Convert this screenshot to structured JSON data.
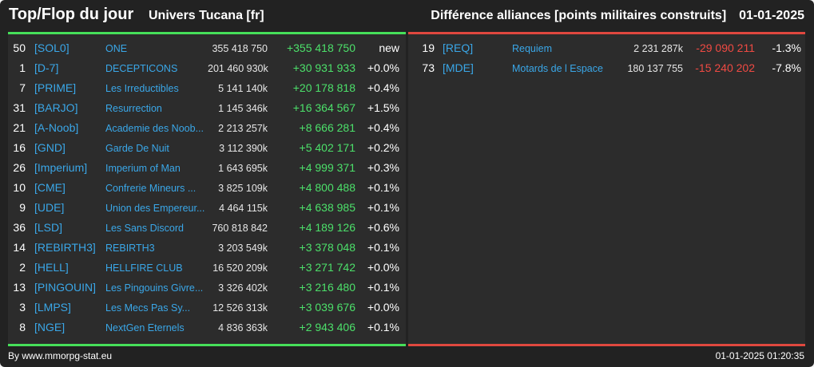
{
  "header": {
    "title": "Top/Flop du jour",
    "universe": "Univers Tucana [fr]",
    "category": "Différence alliances [points militaires construits]",
    "date": "01-01-2025"
  },
  "colors": {
    "top": "#46e05a",
    "flop": "#e0483f",
    "tag": "#3aa7e8"
  },
  "top": [
    {
      "rank": "50",
      "tag": "[SOL0]",
      "name": "ONE",
      "points": "355 418 750",
      "diff": "+355 418 750",
      "pct": "new"
    },
    {
      "rank": "1",
      "tag": "[D-7]",
      "name": "DECEPTICONS",
      "points": "201 460 930k",
      "diff": "+30 931 933",
      "pct": "+0.0%"
    },
    {
      "rank": "7",
      "tag": "[PRIME]",
      "name": "Les Irreductibles",
      "points": "5 141 140k",
      "diff": "+20 178 818",
      "pct": "+0.4%"
    },
    {
      "rank": "31",
      "tag": "[BARJO]",
      "name": "Resurrection",
      "points": "1 145 346k",
      "diff": "+16 364 567",
      "pct": "+1.5%"
    },
    {
      "rank": "21",
      "tag": "[A-Noob]",
      "name": "Academie des Noob...",
      "points": "2 213 257k",
      "diff": "+8 666 281",
      "pct": "+0.4%"
    },
    {
      "rank": "16",
      "tag": "[GND]",
      "name": "Garde De Nuit",
      "points": "3 112 390k",
      "diff": "+5 402 171",
      "pct": "+0.2%"
    },
    {
      "rank": "26",
      "tag": "[Imperium]",
      "name": "Imperium of Man",
      "points": "1 643 695k",
      "diff": "+4 999 371",
      "pct": "+0.3%"
    },
    {
      "rank": "10",
      "tag": "[CME]",
      "name": "Confrerie Mineurs ...",
      "points": "3 825 109k",
      "diff": "+4 800 488",
      "pct": "+0.1%"
    },
    {
      "rank": "9",
      "tag": "[UDE]",
      "name": "Union des Empereur...",
      "points": "4 464 115k",
      "diff": "+4 638 985",
      "pct": "+0.1%"
    },
    {
      "rank": "36",
      "tag": "[LSD]",
      "name": "Les Sans Discord",
      "points": "760 818 842",
      "diff": "+4 189 126",
      "pct": "+0.6%"
    },
    {
      "rank": "14",
      "tag": "[REBIRTH3]",
      "name": "REBIRTH3",
      "points": "3 203 549k",
      "diff": "+3 378 048",
      "pct": "+0.1%"
    },
    {
      "rank": "2",
      "tag": "[HELL]",
      "name": "HELLFIRE CLUB",
      "points": "16 520 209k",
      "diff": "+3 271 742",
      "pct": "+0.0%"
    },
    {
      "rank": "13",
      "tag": "[PINGOUIN]",
      "name": "Les Pingouins Givre...",
      "points": "3 326 402k",
      "diff": "+3 216 480",
      "pct": "+0.1%"
    },
    {
      "rank": "3",
      "tag": "[LMPS]",
      "name": "Les Mecs Pas Sy...",
      "points": "12 526 313k",
      "diff": "+3 039 676",
      "pct": "+0.0%"
    },
    {
      "rank": "8",
      "tag": "[NGE]",
      "name": "NextGen Eternels",
      "points": "4 836 363k",
      "diff": "+2 943 406",
      "pct": "+0.1%"
    }
  ],
  "flop": [
    {
      "rank": "19",
      "tag": "[REQ]",
      "name": "Requiem",
      "points": "2 231 287k",
      "diff": "-29 090 211",
      "pct": "-1.3%"
    },
    {
      "rank": "73",
      "tag": "[MDE]",
      "name": "Motards de l Espace",
      "points": "180 137 755",
      "diff": "-15 240 202",
      "pct": "-7.8%"
    }
  ],
  "footer": {
    "source": "By www.mmorpg-stat.eu",
    "timestamp": "01-01-2025 01:20:35"
  }
}
